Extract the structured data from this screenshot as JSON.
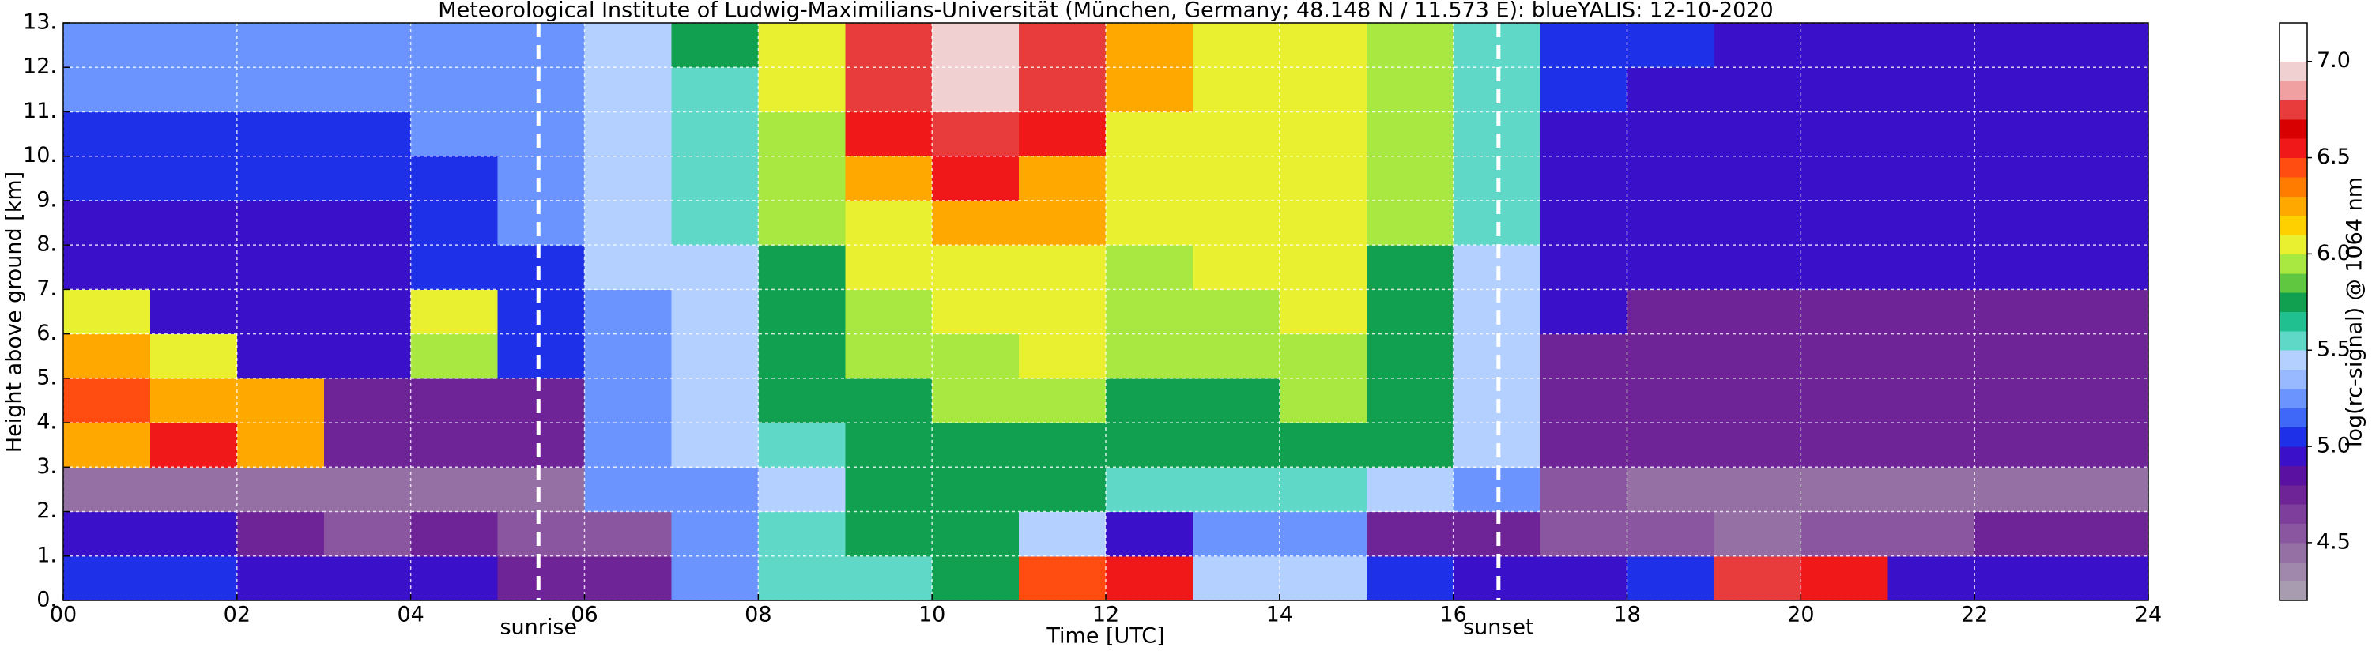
{
  "chart_data": {
    "type": "heatmap",
    "title": "Meteorological Institute of Ludwig-Maximilians-Universität (München, Germany; 48.148 N / 11.573 E):     blueYALIS: 12-10-2020",
    "x_label": "Time [UTC]",
    "y_label": "Height above ground [km]",
    "colorbar_label": "log(rc-signal) @ 1064 nm",
    "xlim": [
      0,
      24
    ],
    "ylim": [
      0,
      13
    ],
    "xticks": [
      {
        "value": 0,
        "label": "00"
      },
      {
        "value": 2,
        "label": "02"
      },
      {
        "value": 4,
        "label": "04"
      },
      {
        "value": 6,
        "label": "06"
      },
      {
        "value": 8,
        "label": "08"
      },
      10,
      12,
      14,
      16,
      18,
      20,
      22,
      24
    ],
    "yticks": [
      {
        "value": 0,
        "label": "0."
      },
      {
        "value": 1,
        "label": "1."
      },
      {
        "value": 2,
        "label": "2."
      },
      {
        "value": 3,
        "label": "3."
      },
      {
        "value": 4,
        "label": "4."
      },
      {
        "value": 5,
        "label": "5."
      },
      {
        "value": 6,
        "label": "6."
      },
      {
        "value": 7,
        "label": "7."
      },
      {
        "value": 8,
        "label": "8."
      },
      {
        "value": 9,
        "label": "9."
      },
      {
        "value": 10,
        "label": "10."
      },
      {
        "value": 11,
        "label": "11."
      },
      {
        "value": 12,
        "label": "12."
      },
      {
        "value": 13,
        "label": "13."
      }
    ],
    "grid": true,
    "clim": [
      4.2,
      7.2
    ],
    "cticks": [
      4.5,
      {
        "value": 5,
        "label": "5.0"
      },
      5.5,
      {
        "value": 6,
        "label": "6.0"
      },
      6.5,
      {
        "value": 7,
        "label": "7.0"
      }
    ],
    "colors": [
      "#a89cb0",
      "#a088ac",
      "#9470a4",
      "#8a56a0",
      "#7e3e9c",
      "#6e2496",
      "#5a10a0",
      "#3a10c8",
      "#1e30e8",
      "#4068f8",
      "#6c94ff",
      "#98b8ff",
      "#b4d0ff",
      "#60d8c8",
      "#20c090",
      "#10a050",
      "#60c840",
      "#a8e840",
      "#e8f030",
      "#ffd000",
      "#ffa800",
      "#ff7c00",
      "#ff4c10",
      "#f01818",
      "#d80000",
      "#e83c3c",
      "#f0a0a0",
      "#f0d0d0",
      "#ffffff",
      "#ffffff"
    ],
    "z": [
      [
        5.1,
        5.1,
        5.0,
        5.0,
        4.9,
        4.7,
        4.7,
        5.3,
        5.6,
        5.6,
        5.7,
        6.4,
        6.6,
        5.5,
        5.4,
        5.1,
        5.0,
        5.0,
        5.1,
        6.7,
        6.6,
        5.0,
        5.0,
        5.0
      ],
      [
        4.9,
        4.9,
        4.8,
        4.6,
        4.7,
        4.6,
        4.6,
        5.2,
        5.6,
        5.7,
        5.8,
        5.4,
        5.0,
        5.2,
        5.3,
        4.8,
        4.7,
        4.6,
        4.6,
        4.5,
        4.6,
        4.6,
        4.7,
        4.7
      ],
      [
        4.4,
        4.4,
        4.4,
        4.4,
        4.4,
        4.5,
        5.2,
        5.3,
        5.5,
        5.7,
        5.7,
        5.7,
        5.6,
        5.6,
        5.6,
        5.5,
        5.3,
        4.6,
        4.5,
        4.5,
        4.5,
        4.5,
        4.5,
        4.5
      ],
      [
        6.3,
        6.5,
        6.2,
        4.8,
        4.7,
        4.7,
        5.2,
        5.4,
        5.6,
        5.8,
        5.8,
        5.8,
        5.7,
        5.7,
        5.8,
        5.7,
        5.4,
        4.7,
        4.7,
        4.7,
        4.7,
        4.7,
        4.7,
        4.7
      ],
      [
        6.4,
        6.2,
        6.3,
        4.8,
        4.8,
        4.8,
        5.3,
        5.4,
        5.7,
        5.8,
        5.9,
        5.9,
        5.8,
        5.8,
        5.9,
        5.8,
        5.5,
        4.8,
        4.8,
        4.8,
        4.8,
        4.8,
        4.7,
        4.7
      ],
      [
        6.2,
        6.0,
        5.0,
        4.9,
        5.9,
        5.1,
        5.3,
        5.5,
        5.7,
        5.9,
        5.9,
        6.0,
        5.9,
        5.9,
        5.9,
        5.8,
        5.5,
        4.8,
        4.8,
        4.8,
        4.8,
        4.8,
        4.8,
        4.8
      ],
      [
        6.1,
        5.0,
        4.9,
        4.9,
        6.0,
        5.1,
        5.3,
        5.5,
        5.8,
        5.9,
        6.0,
        6.0,
        5.9,
        5.9,
        6.0,
        5.8,
        5.5,
        4.9,
        4.8,
        4.8,
        4.8,
        4.8,
        4.8,
        4.8
      ],
      [
        5.0,
        5.0,
        5.0,
        5.0,
        5.1,
        5.1,
        5.4,
        5.5,
        5.8,
        6.0,
        6.1,
        6.1,
        5.9,
        6.0,
        6.0,
        5.8,
        5.5,
        4.9,
        4.9,
        4.9,
        4.9,
        4.9,
        4.9,
        4.9
      ],
      [
        5.0,
        5.0,
        5.0,
        5.0,
        5.1,
        5.2,
        5.4,
        5.6,
        5.9,
        6.1,
        6.3,
        6.2,
        6.0,
        6.0,
        6.0,
        5.9,
        5.6,
        5.0,
        5.0,
        4.9,
        4.9,
        4.9,
        4.9,
        4.9
      ],
      [
        5.1,
        5.1,
        5.1,
        5.1,
        5.1,
        5.2,
        5.4,
        5.6,
        5.9,
        6.3,
        6.5,
        6.3,
        6.0,
        6.0,
        6.0,
        5.9,
        5.6,
        5.0,
        5.0,
        5.0,
        5.0,
        5.0,
        5.0,
        5.0
      ],
      [
        5.1,
        5.1,
        5.1,
        5.1,
        5.2,
        5.2,
        5.5,
        5.6,
        5.9,
        6.5,
        6.8,
        6.5,
        6.1,
        6.0,
        6.0,
        5.9,
        5.6,
        5.0,
        5.0,
        5.0,
        5.0,
        5.0,
        5.0,
        5.0
      ],
      [
        5.2,
        5.2,
        5.2,
        5.2,
        5.2,
        5.3,
        5.5,
        5.6,
        6.0,
        6.7,
        6.9,
        6.7,
        6.2,
        6.0,
        6.0,
        5.9,
        5.6,
        5.1,
        5.0,
        5.0,
        5.0,
        5.0,
        5.0,
        5.0
      ],
      [
        5.2,
        5.2,
        5.2,
        5.2,
        5.2,
        5.3,
        5.5,
        5.7,
        6.0,
        6.8,
        7.0,
        6.8,
        6.3,
        6.1,
        6.0,
        5.9,
        5.6,
        5.1,
        5.1,
        5.0,
        5.0,
        5.0,
        5.0,
        5.0
      ]
    ],
    "annotations": [
      {
        "x": 5.47,
        "text": "sunrise"
      },
      {
        "x": 16.52,
        "text": "sunset"
      }
    ]
  }
}
